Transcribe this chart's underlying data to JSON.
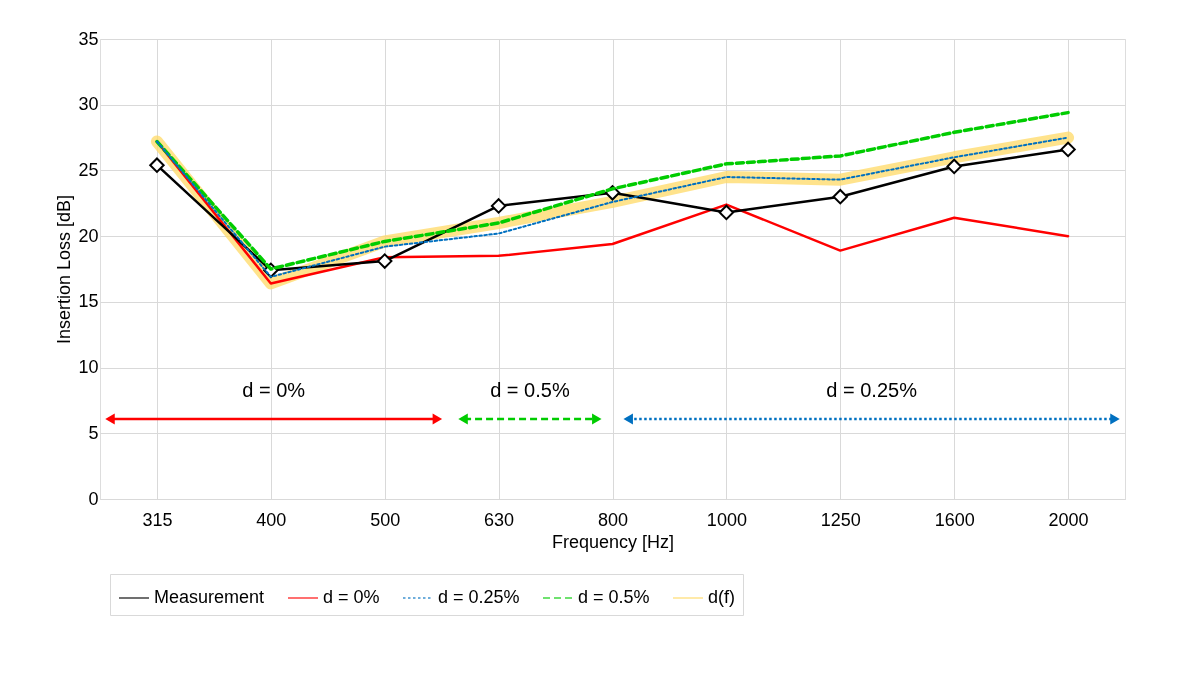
{
  "chart_data": {
    "type": "line",
    "xlabel": "Frequency [Hz]",
    "ylabel": "Insertion Loss [dB]",
    "categories": [
      "315",
      "400",
      "500",
      "630",
      "800",
      "1000",
      "1250",
      "1600",
      "2000"
    ],
    "series": [
      {
        "name": "Measurement",
        "color": "#000000",
        "marker": "diamond",
        "line_style": "solid",
        "values": [
          25.4,
          17.4,
          18.1,
          22.3,
          23.3,
          21.8,
          23.0,
          25.3,
          26.6
        ]
      },
      {
        "name": "d = 0%",
        "color": "#ff0000",
        "line_style": "solid",
        "values": [
          27.2,
          16.4,
          18.4,
          18.5,
          19.4,
          22.4,
          18.9,
          21.4,
          20.0
        ]
      },
      {
        "name": "d = 0.25%",
        "color": "#0070c0",
        "line_style": "dotted",
        "values": [
          27.2,
          16.9,
          19.2,
          20.2,
          22.6,
          24.5,
          24.3,
          26.0,
          27.5
        ]
      },
      {
        "name": "d = 0.5%",
        "color": "#00cc00",
        "line_style": "dashed",
        "values": [
          27.2,
          17.5,
          19.6,
          21.0,
          23.6,
          25.5,
          26.1,
          27.9,
          29.4
        ]
      },
      {
        "name": "d(f)",
        "color": "#ffd966",
        "line_style": "solid",
        "values": [
          27.2,
          16.4,
          19.6,
          21.0,
          22.6,
          24.5,
          24.3,
          26.0,
          27.5
        ]
      }
    ],
    "ylim": [
      0,
      35
    ],
    "yticks": [
      0,
      5,
      10,
      15,
      20,
      25,
      30,
      35
    ],
    "grid": true,
    "legend": "bottom",
    "annotations": [
      "d = 0%",
      "d = 0.5%",
      "d = 0.25%"
    ]
  }
}
